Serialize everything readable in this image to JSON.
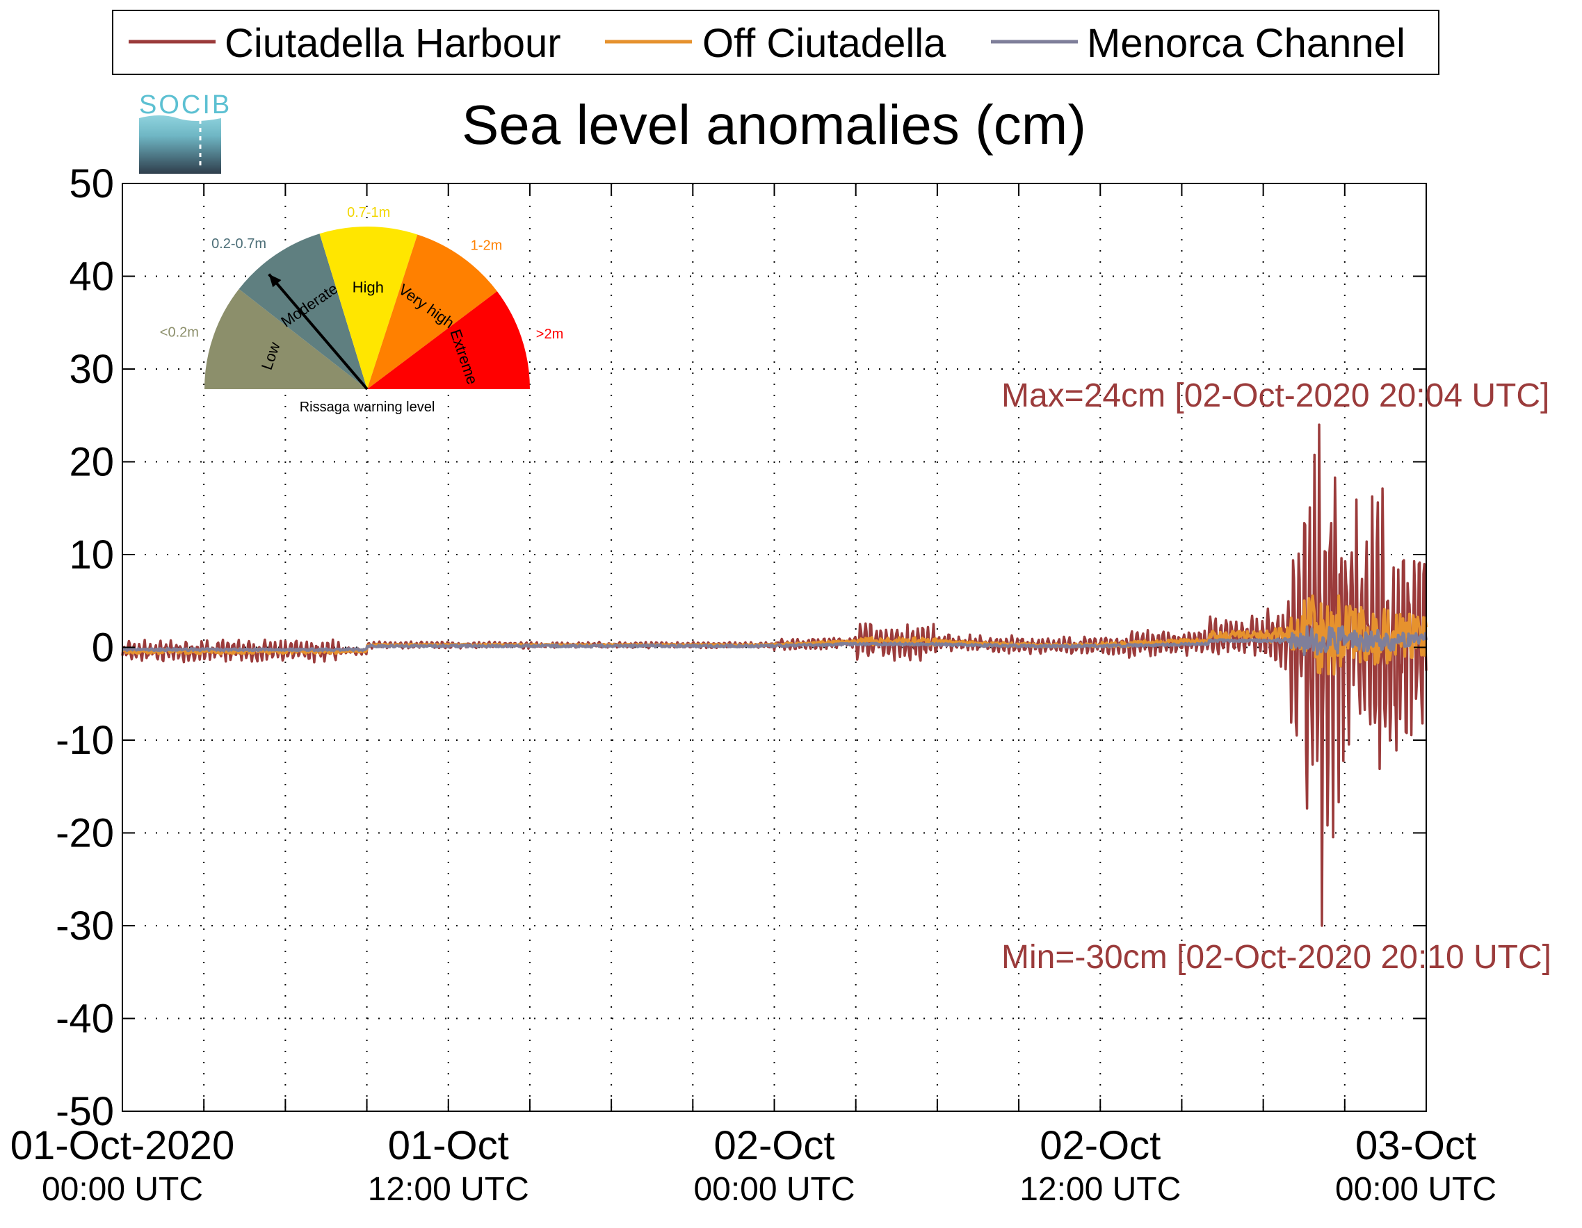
{
  "chart_data": {
    "type": "line",
    "title": "Sea level anomalies (cm)",
    "logo_text": "SOCIB",
    "ylim": [
      -50,
      50
    ],
    "yticks": [
      -50,
      -40,
      -30,
      -20,
      -10,
      0,
      10,
      20,
      30,
      40,
      50
    ],
    "xlim_hours": [
      0,
      48
    ],
    "x_start": "01-Oct-2020 00:00 UTC",
    "x_end": "03-Oct-2020 00:00 UTC",
    "xticks": [
      {
        "hour": 0,
        "line1": "01-Oct-2020",
        "line2": "00:00 UTC"
      },
      {
        "hour": 12,
        "line1": "01-Oct",
        "line2": "12:00 UTC"
      },
      {
        "hour": 24,
        "line1": "02-Oct",
        "line2": "00:00 UTC"
      },
      {
        "hour": 36,
        "line1": "02-Oct",
        "line2": "12:00 UTC"
      },
      {
        "hour": 48,
        "line1": "03-Oct",
        "line2": "00:00 UTC"
      }
    ],
    "grid": true,
    "legend_position": "top",
    "series": [
      {
        "name": "Ciutadella Harbour",
        "color": "#9b3b3b"
      },
      {
        "name": "Off Ciutadella",
        "color": "#e6922e"
      },
      {
        "name": "Menorca Channel",
        "color": "#7f7f9a"
      }
    ],
    "annotations": {
      "max": "Max=24cm [02-Oct-2020 20:04 UTC]",
      "min": "Min=-30cm [02-Oct-2020 20:10 UTC]",
      "max_value": 24,
      "min_value": -30,
      "color": "#9b3b3b"
    },
    "gauge": {
      "title": "Rissaga warning level",
      "indicated_level": "Moderate",
      "levels": [
        {
          "name": "Low",
          "range": "<0.2m",
          "color": "#8c8f6b",
          "range_color": "#8c8f6b"
        },
        {
          "name": "Moderate",
          "range": "0.2-0.7m",
          "color": "#5f7f80",
          "range_color": "#4d6f78"
        },
        {
          "name": "High",
          "range": "0.7-1m",
          "color": "#ffe600",
          "range_color": "#f2d600"
        },
        {
          "name": "Very high",
          "range": "1-2m",
          "color": "#ff8000",
          "range_color": "#ff8000"
        },
        {
          "name": "Extreme",
          "range": ">2m",
          "color": "#ff0000",
          "range_color": "#ff0000"
        }
      ]
    }
  }
}
